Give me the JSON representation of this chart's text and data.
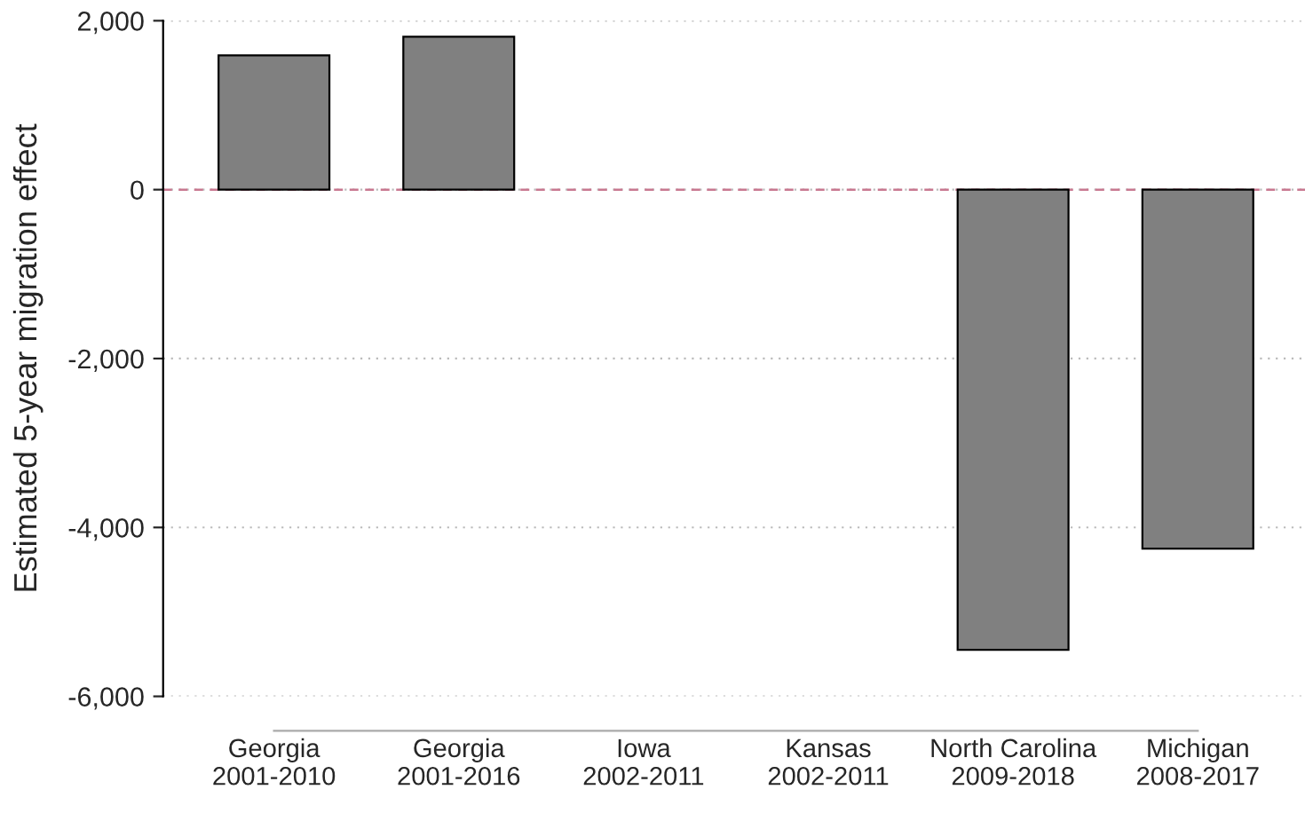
{
  "chart_data": {
    "type": "bar",
    "ylabel": "Estimated 5-year migration effect",
    "categories": [
      "Georgia\n2001-2010",
      "Georgia\n2001-2016",
      "Iowa\n2002-2011",
      "Kansas\n2002-2011",
      "North Carolina\n2009-2018",
      "Michigan\n2008-2017"
    ],
    "values": [
      1590,
      1810,
      null,
      null,
      -5450,
      -4250
    ],
    "color": "#808080",
    "ylim": [
      -6000,
      2000
    ],
    "yticks": [
      {
        "value": 2000,
        "label": "2,000"
      },
      0,
      {
        "value": -2000,
        "label": "-2,000"
      },
      {
        "value": -4000,
        "label": "-4,000"
      },
      {
        "value": -6000,
        "label": "-6,000"
      }
    ],
    "grid": "y",
    "ref_lines": [
      {
        "axis": "y",
        "value": 0,
        "color": "#c87890",
        "line_style": "dashed"
      }
    ]
  }
}
